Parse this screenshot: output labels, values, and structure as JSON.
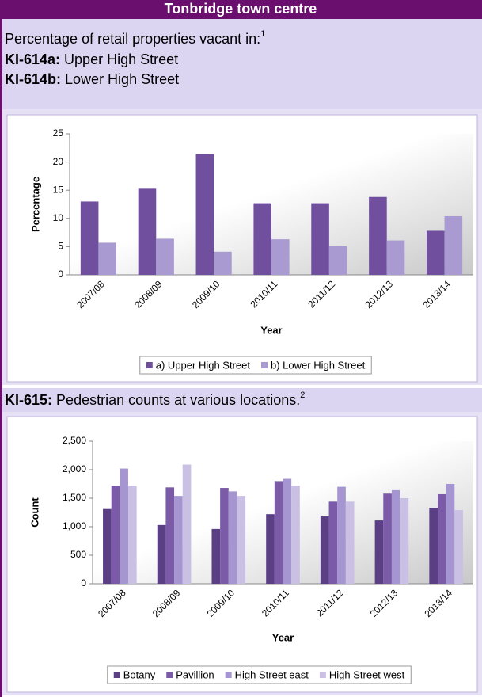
{
  "header": {
    "title": "Tonbridge town centre"
  },
  "intro": {
    "text": "Percentage of retail properties vacant in:",
    "note": "1",
    "items": [
      {
        "code": "KI-614a:",
        "label": "Upper High Street"
      },
      {
        "code": "KI-614b:",
        "label": "Lower High Street"
      }
    ]
  },
  "section2": {
    "code": "KI-615:",
    "label": "Pedestrian counts at various locations.",
    "note": "2"
  },
  "chart_data": [
    {
      "type": "bar",
      "x_label": "Year",
      "y_label": "Percentage",
      "categories": [
        "2007/08",
        "2008/09",
        "2009/10",
        "2010/11",
        "2011/12",
        "2012/13",
        "2013/14"
      ],
      "series": [
        {
          "name": "a) Upper High Street",
          "color": "#6f4f9e",
          "values": [
            13,
            15.4,
            21.4,
            12.7,
            12.7,
            13.8,
            7.8
          ]
        },
        {
          "name": "b) Lower High Street",
          "color": "#a99bd1",
          "values": [
            5.7,
            6.4,
            4.1,
            6.3,
            5.1,
            6.1,
            10.4
          ]
        }
      ],
      "ylim": [
        0,
        25
      ],
      "yticks": [
        0,
        5,
        10,
        15,
        20,
        25
      ],
      "legend": "bottom"
    },
    {
      "type": "bar",
      "x_label": "Year",
      "y_label": "Count",
      "categories": [
        "2007/08",
        "2008/09",
        "2009/10",
        "2010/11",
        "2011/12",
        "2012/13",
        "2013/14"
      ],
      "series": [
        {
          "name": "Botany",
          "color": "#5b3f85",
          "values": [
            1310,
            1030,
            960,
            1220,
            1180,
            1110,
            1330
          ]
        },
        {
          "name": "Pavillion",
          "color": "#7b5ba8",
          "values": [
            1720,
            1690,
            1680,
            1800,
            1440,
            1580,
            1570
          ]
        },
        {
          "name": "High Street east",
          "color": "#a595d0",
          "values": [
            2020,
            1540,
            1620,
            1840,
            1700,
            1640,
            1750
          ]
        },
        {
          "name": "High Street west",
          "color": "#c9c0e4",
          "values": [
            1720,
            2090,
            1540,
            1720,
            1440,
            1500,
            1290
          ]
        }
      ],
      "ylim": [
        0,
        2500
      ],
      "yticks": [
        0,
        500,
        {
          "value": 1000,
          "label": "1,000"
        },
        {
          "value": 1500,
          "label": "1,500"
        },
        {
          "value": 2000,
          "label": "2,000"
        },
        {
          "value": 2500,
          "label": "2,500"
        }
      ],
      "legend": "bottom"
    }
  ]
}
